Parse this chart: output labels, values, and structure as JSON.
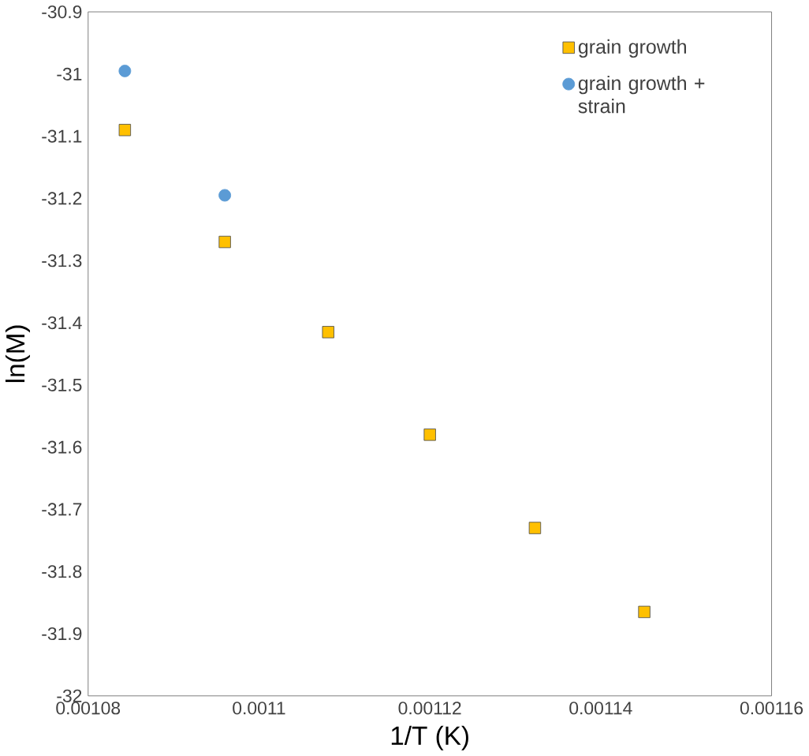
{
  "chart_data": {
    "type": "scatter",
    "xlabel": "1/T (K)",
    "ylabel": "ln(M)",
    "xlim": [
      0.00108,
      0.00116
    ],
    "xticks": [
      0.00108,
      0.0011,
      0.00112,
      0.00114,
      0.00116
    ],
    "ylim": [
      -32,
      -30.9
    ],
    "yticks": [
      -32,
      -31.9,
      -31.8,
      -31.7,
      -31.6,
      -31.5,
      -31.4,
      -31.3,
      -31.2,
      -31.1,
      -31,
      -30.9
    ],
    "legend": "top right",
    "series": [
      {
        "name": "grain growth",
        "color": "#ffc000",
        "marker": "square",
        "x": [
          0.0010843,
          0.001096,
          0.0011081,
          0.00112,
          0.0011323,
          0.0011451
        ],
        "values": [
          -31.09,
          -31.27,
          -31.415,
          -31.58,
          -31.73,
          -31.865
        ]
      },
      {
        "name": "grain growth + strain",
        "color": "#5b9bd5",
        "marker": "circle",
        "x": [
          0.0010843,
          0.001096
        ],
        "values": [
          -30.995,
          -31.195
        ]
      }
    ]
  }
}
